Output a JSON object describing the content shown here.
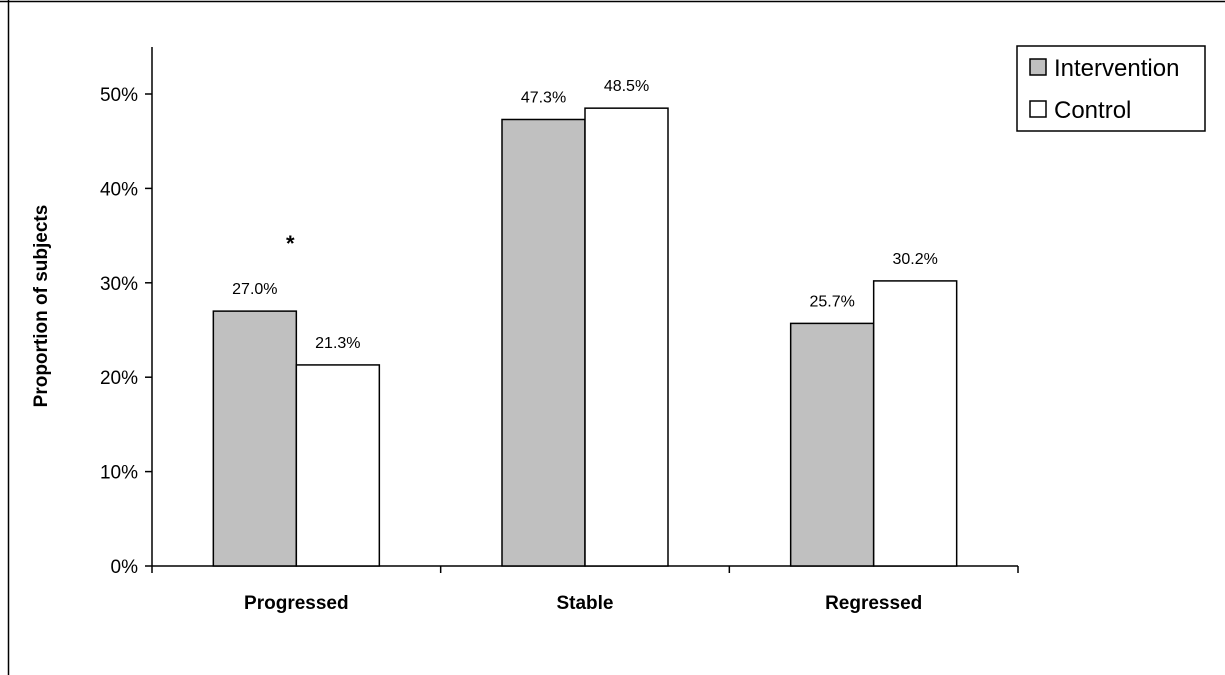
{
  "chart_data": {
    "type": "bar",
    "categories": [
      "Progressed",
      "Stable",
      "Regressed"
    ],
    "series": [
      {
        "name": "Intervention",
        "values": [
          27.0,
          47.3,
          25.7
        ],
        "labels": [
          "27.0%",
          "47.3%",
          "25.7%"
        ],
        "color": "#c0c0c0"
      },
      {
        "name": "Control",
        "values": [
          21.3,
          48.5,
          30.2
        ],
        "labels": [
          "21.3%",
          "48.5%",
          "30.2%"
        ],
        "color": "#ffffff"
      }
    ],
    "ylabel": "Proportion of subjects",
    "ylim": [
      0,
      55
    ],
    "yticks": [
      0,
      10,
      20,
      30,
      40,
      50
    ],
    "ytick_labels": [
      "0%",
      "10%",
      "20%",
      "30%",
      "40%",
      "50%"
    ],
    "legend_position": "top-right",
    "grid": false,
    "annotations": [
      {
        "text": "*",
        "category": "Progressed"
      }
    ]
  }
}
